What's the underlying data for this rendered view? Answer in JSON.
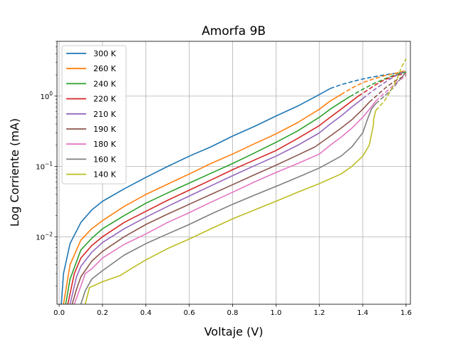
{
  "chart_data": {
    "type": "line",
    "title": "Amorfa 9B",
    "xlabel": "Voltaje (V)",
    "ylabel": "Log Corriente (mA)",
    "xlim": [
      -0.01,
      1.62
    ],
    "ylim": [
      0.0011,
      6.0
    ],
    "yscale": "log",
    "grid": true,
    "legend_position": "top-left",
    "xticks": [
      {
        "value": 0.0,
        "label": "0.0"
      },
      {
        "value": 0.2,
        "label": "0.2"
      },
      {
        "value": 0.4,
        "label": "0.4"
      },
      {
        "value": 0.6,
        "label": "0.6"
      },
      {
        "value": 0.8,
        "label": "0.8"
      },
      {
        "value": 1.0,
        "label": "1.0"
      },
      {
        "value": 1.2,
        "label": "1.2"
      },
      {
        "value": 1.4,
        "label": "1.4"
      },
      {
        "value": 1.6,
        "label": "1.6"
      }
    ],
    "yticks": [
      {
        "value": 0.01,
        "base": "10",
        "exp": "−2"
      },
      {
        "value": 0.1,
        "base": "10",
        "exp": "−1"
      },
      {
        "value": 1.0,
        "base": "10",
        "exp": "0"
      }
    ],
    "series": [
      {
        "name": "300 K",
        "color": "#1f77b4",
        "solid": [
          [
            0.01,
            0.0011
          ],
          [
            0.02,
            0.003
          ],
          [
            0.05,
            0.008
          ],
          [
            0.1,
            0.016
          ],
          [
            0.15,
            0.024
          ],
          [
            0.2,
            0.032
          ],
          [
            0.3,
            0.048
          ],
          [
            0.4,
            0.07
          ],
          [
            0.5,
            0.1
          ],
          [
            0.6,
            0.14
          ],
          [
            0.7,
            0.19
          ],
          [
            0.8,
            0.27
          ],
          [
            0.9,
            0.37
          ],
          [
            1.0,
            0.52
          ],
          [
            1.1,
            0.72
          ],
          [
            1.2,
            1.05
          ],
          [
            1.25,
            1.28
          ]
        ],
        "dashed": [
          [
            1.25,
            1.28
          ],
          [
            1.3,
            1.45
          ],
          [
            1.35,
            1.6
          ],
          [
            1.4,
            1.75
          ],
          [
            1.45,
            1.88
          ],
          [
            1.5,
            2.0
          ],
          [
            1.55,
            2.1
          ],
          [
            1.6,
            2.2
          ]
        ]
      },
      {
        "name": "260 K",
        "color": "#ff7f0e",
        "solid": [
          [
            0.02,
            0.0011
          ],
          [
            0.05,
            0.004
          ],
          [
            0.1,
            0.009
          ],
          [
            0.15,
            0.013
          ],
          [
            0.2,
            0.017
          ],
          [
            0.3,
            0.027
          ],
          [
            0.4,
            0.04
          ],
          [
            0.5,
            0.056
          ],
          [
            0.6,
            0.078
          ],
          [
            0.7,
            0.11
          ],
          [
            0.8,
            0.15
          ],
          [
            0.9,
            0.21
          ],
          [
            1.0,
            0.29
          ],
          [
            1.1,
            0.42
          ],
          [
            1.2,
            0.65
          ],
          [
            1.25,
            0.85
          ],
          [
            1.3,
            1.05
          ]
        ],
        "dashed": [
          [
            1.3,
            1.05
          ],
          [
            1.35,
            1.3
          ],
          [
            1.4,
            1.55
          ],
          [
            1.45,
            1.75
          ],
          [
            1.5,
            1.95
          ],
          [
            1.55,
            2.1
          ],
          [
            1.6,
            2.3
          ]
        ]
      },
      {
        "name": "240 K",
        "color": "#2ca02c",
        "solid": [
          [
            0.03,
            0.0011
          ],
          [
            0.05,
            0.0025
          ],
          [
            0.1,
            0.0065
          ],
          [
            0.15,
            0.0095
          ],
          [
            0.2,
            0.013
          ],
          [
            0.3,
            0.02
          ],
          [
            0.4,
            0.03
          ],
          [
            0.5,
            0.042
          ],
          [
            0.6,
            0.058
          ],
          [
            0.7,
            0.08
          ],
          [
            0.8,
            0.11
          ],
          [
            0.9,
            0.155
          ],
          [
            1.0,
            0.22
          ],
          [
            1.1,
            0.32
          ],
          [
            1.2,
            0.5
          ],
          [
            1.25,
            0.65
          ],
          [
            1.3,
            0.82
          ],
          [
            1.34,
            0.98
          ]
        ],
        "dashed": [
          [
            1.34,
            0.98
          ],
          [
            1.4,
            1.25
          ],
          [
            1.45,
            1.5
          ],
          [
            1.5,
            1.75
          ],
          [
            1.55,
            2.0
          ],
          [
            1.6,
            2.2
          ]
        ]
      },
      {
        "name": "220 K",
        "color": "#d62728",
        "solid": [
          [
            0.04,
            0.0011
          ],
          [
            0.07,
            0.003
          ],
          [
            0.1,
            0.005
          ],
          [
            0.15,
            0.0075
          ],
          [
            0.2,
            0.01
          ],
          [
            0.3,
            0.016
          ],
          [
            0.4,
            0.023
          ],
          [
            0.5,
            0.033
          ],
          [
            0.6,
            0.046
          ],
          [
            0.7,
            0.064
          ],
          [
            0.8,
            0.09
          ],
          [
            0.9,
            0.123
          ],
          [
            1.0,
            0.168
          ],
          [
            1.1,
            0.25
          ],
          [
            1.2,
            0.38
          ],
          [
            1.25,
            0.5
          ],
          [
            1.3,
            0.65
          ],
          [
            1.35,
            0.85
          ],
          [
            1.38,
            1.0
          ]
        ],
        "dashed": [
          [
            1.38,
            1.0
          ],
          [
            1.42,
            1.2
          ],
          [
            1.46,
            1.45
          ],
          [
            1.5,
            1.7
          ],
          [
            1.55,
            1.95
          ],
          [
            1.6,
            2.1
          ]
        ]
      },
      {
        "name": "210 K",
        "color": "#9467bd",
        "solid": [
          [
            0.05,
            0.0011
          ],
          [
            0.08,
            0.0027
          ],
          [
            0.1,
            0.0038
          ],
          [
            0.15,
            0.006
          ],
          [
            0.2,
            0.0083
          ],
          [
            0.3,
            0.013
          ],
          [
            0.4,
            0.019
          ],
          [
            0.5,
            0.027
          ],
          [
            0.6,
            0.038
          ],
          [
            0.7,
            0.053
          ],
          [
            0.8,
            0.074
          ],
          [
            0.9,
            0.102
          ],
          [
            1.0,
            0.14
          ],
          [
            1.1,
            0.2
          ],
          [
            1.2,
            0.3
          ],
          [
            1.25,
            0.4
          ],
          [
            1.3,
            0.52
          ],
          [
            1.35,
            0.7
          ],
          [
            1.4,
            0.92
          ]
        ],
        "dashed": [
          [
            1.4,
            0.92
          ],
          [
            1.44,
            1.15
          ],
          [
            1.48,
            1.4
          ],
          [
            1.52,
            1.7
          ],
          [
            1.56,
            2.0
          ],
          [
            1.6,
            2.3
          ]
        ]
      },
      {
        "name": "190 K",
        "color": "#8c564b",
        "solid": [
          [
            0.06,
            0.0011
          ],
          [
            0.08,
            0.0018
          ],
          [
            0.1,
            0.0027
          ],
          [
            0.15,
            0.0045
          ],
          [
            0.2,
            0.0062
          ],
          [
            0.3,
            0.01
          ],
          [
            0.4,
            0.015
          ],
          [
            0.5,
            0.021
          ],
          [
            0.6,
            0.029
          ],
          [
            0.7,
            0.04
          ],
          [
            0.8,
            0.055
          ],
          [
            0.9,
            0.076
          ],
          [
            1.0,
            0.104
          ],
          [
            1.1,
            0.145
          ],
          [
            1.18,
            0.19
          ],
          [
            1.25,
            0.27
          ],
          [
            1.3,
            0.35
          ],
          [
            1.35,
            0.46
          ],
          [
            1.4,
            0.65
          ],
          [
            1.43,
            0.82
          ]
        ],
        "dashed": [
          [
            1.43,
            0.82
          ],
          [
            1.47,
            1.05
          ],
          [
            1.51,
            1.35
          ],
          [
            1.55,
            1.65
          ],
          [
            1.6,
            2.0
          ]
        ]
      },
      {
        "name": "180 K",
        "color": "#e377c2",
        "solid": [
          [
            0.07,
            0.0011
          ],
          [
            0.1,
            0.002
          ],
          [
            0.12,
            0.003
          ],
          [
            0.15,
            0.0035
          ],
          [
            0.2,
            0.005
          ],
          [
            0.3,
            0.0078
          ],
          [
            0.4,
            0.011
          ],
          [
            0.5,
            0.016
          ],
          [
            0.6,
            0.022
          ],
          [
            0.7,
            0.031
          ],
          [
            0.8,
            0.043
          ],
          [
            0.9,
            0.06
          ],
          [
            1.0,
            0.082
          ],
          [
            1.1,
            0.11
          ],
          [
            1.2,
            0.15
          ],
          [
            1.25,
            0.2
          ],
          [
            1.3,
            0.26
          ],
          [
            1.35,
            0.35
          ],
          [
            1.4,
            0.5
          ],
          [
            1.44,
            0.7
          ],
          [
            1.46,
            0.85
          ]
        ],
        "dashed": [
          [
            1.46,
            0.85
          ],
          [
            1.5,
            1.1
          ],
          [
            1.54,
            1.4
          ],
          [
            1.57,
            1.7
          ],
          [
            1.6,
            1.9
          ]
        ]
      },
      {
        "name": "160 K",
        "color": "#7f7f7f",
        "solid": [
          [
            0.1,
            0.0011
          ],
          [
            0.12,
            0.0017
          ],
          [
            0.15,
            0.0025
          ],
          [
            0.2,
            0.0033
          ],
          [
            0.3,
            0.0055
          ],
          [
            0.4,
            0.008
          ],
          [
            0.5,
            0.011
          ],
          [
            0.6,
            0.015
          ],
          [
            0.7,
            0.021
          ],
          [
            0.8,
            0.029
          ],
          [
            0.9,
            0.039
          ],
          [
            1.0,
            0.052
          ],
          [
            1.1,
            0.07
          ],
          [
            1.2,
            0.095
          ],
          [
            1.3,
            0.14
          ],
          [
            1.35,
            0.19
          ],
          [
            1.4,
            0.3
          ],
          [
            1.42,
            0.45
          ],
          [
            1.44,
            0.65
          ],
          [
            1.46,
            0.78
          ]
        ],
        "dashed": [
          [
            1.46,
            0.78
          ],
          [
            1.5,
            1.0
          ],
          [
            1.54,
            1.3
          ],
          [
            1.57,
            1.7
          ],
          [
            1.6,
            2.2
          ]
        ]
      },
      {
        "name": "140 K",
        "color": "#bcbd22",
        "solid": [
          [
            0.12,
            0.0011
          ],
          [
            0.14,
            0.0019
          ],
          [
            0.2,
            0.0023
          ],
          [
            0.28,
            0.0028
          ],
          [
            0.35,
            0.0038
          ],
          [
            0.4,
            0.0047
          ],
          [
            0.5,
            0.0068
          ],
          [
            0.6,
            0.0093
          ],
          [
            0.7,
            0.013
          ],
          [
            0.8,
            0.018
          ],
          [
            0.9,
            0.024
          ],
          [
            1.0,
            0.032
          ],
          [
            1.1,
            0.043
          ],
          [
            1.2,
            0.057
          ],
          [
            1.3,
            0.078
          ],
          [
            1.35,
            0.1
          ],
          [
            1.4,
            0.14
          ],
          [
            1.43,
            0.2
          ],
          [
            1.44,
            0.28
          ],
          [
            1.45,
            0.4
          ],
          [
            1.45,
            0.43
          ],
          [
            1.45,
            0.46
          ],
          [
            1.46,
            0.62
          ]
        ],
        "dashed": [
          [
            1.46,
            0.62
          ],
          [
            1.5,
            0.85
          ],
          [
            1.53,
            1.2
          ],
          [
            1.56,
            1.8
          ],
          [
            1.58,
            2.6
          ],
          [
            1.6,
            3.4
          ]
        ]
      }
    ]
  }
}
